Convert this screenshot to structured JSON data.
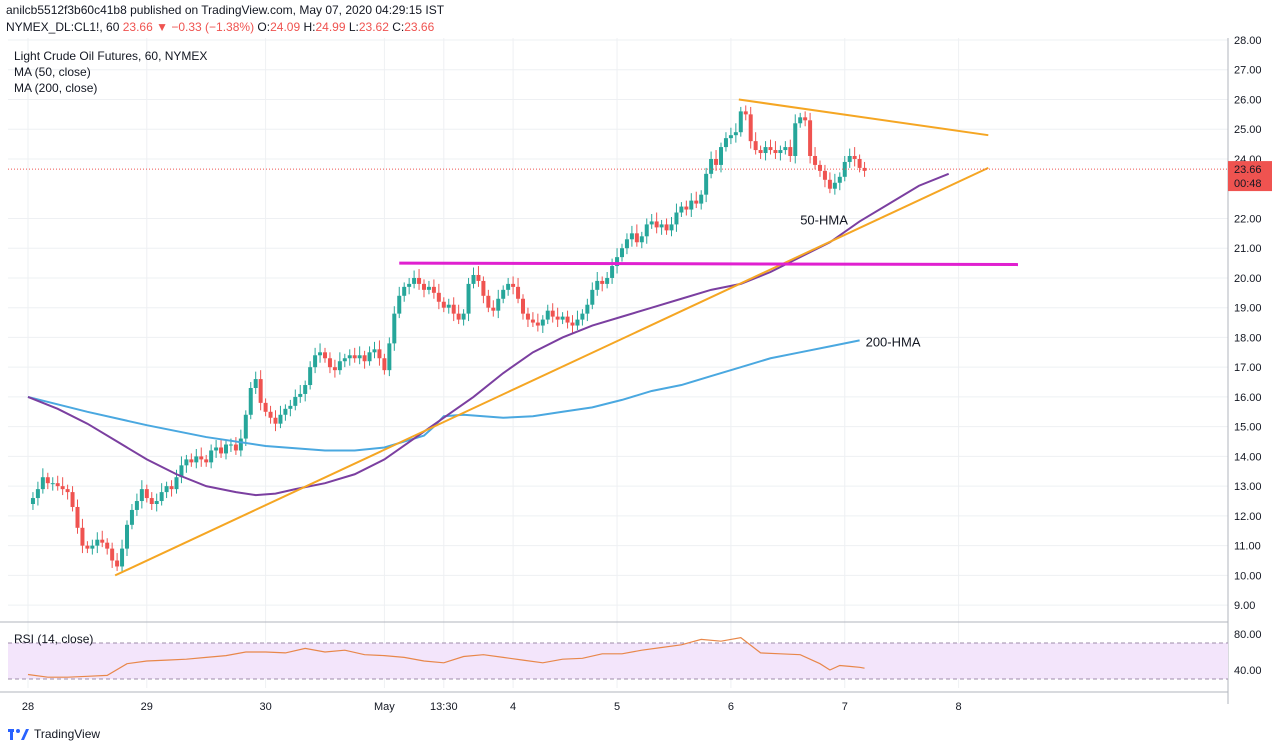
{
  "header": {
    "line1": "anilcb5512f3b60c41b8 published on TradingView.com, May 07, 2020 04:29:15 IST",
    "symbol": "NYMEX_DL:CL1!, 60",
    "last": "23.66",
    "change": "−0.33 (−1.38%)",
    "o_label": "O:",
    "o": "24.09",
    "h_label": "H:",
    "h": "24.99",
    "l_label": "L:",
    "l": "23.62",
    "c_label": "C:",
    "c": "23.66"
  },
  "legend": {
    "title": "Light Crude Oil Futures, 60, NYMEX",
    "ma50": "MA (50, close)",
    "ma200": "MA (200, close)",
    "rsi": "RSI (14, close)"
  },
  "footer": {
    "brand": "TradingView"
  },
  "colors": {
    "up": "#26a69a",
    "down": "#ef5350",
    "hma50": "#7b3fa0",
    "hma200": "#4aa8e0",
    "trend": "#f5a623",
    "resistance": "#e020d0",
    "rsi": "#e8874a",
    "rsi_band": "#f3e5fb"
  },
  "chart_data": {
    "type": "candlestick",
    "title": "Light Crude Oil Futures, 60, NYMEX",
    "ylim": [
      8.5,
      28.0
    ],
    "yticks": [
      "28.00",
      "27.00",
      "26.00",
      "25.00",
      "24.00",
      "22.00",
      "21.00",
      "20.00",
      "19.00",
      "18.00",
      "17.00",
      "16.00",
      "15.00",
      "14.00",
      "13.00",
      "12.00",
      "11.00",
      "10.00",
      "9.00"
    ],
    "x_domain": [
      0,
      1000
    ],
    "xticks": [
      {
        "label": "28",
        "x": 0
      },
      {
        "label": "29",
        "x": 120
      },
      {
        "label": "30",
        "x": 240
      },
      {
        "label": "May",
        "x": 360
      },
      {
        "label": "13:30",
        "x": 420
      },
      {
        "label": "4",
        "x": 490
      },
      {
        "label": "5",
        "x": 595
      },
      {
        "label": "6",
        "x": 710
      },
      {
        "label": "7",
        "x": 825
      },
      {
        "label": "8",
        "x": 940
      }
    ],
    "last_price": {
      "value": 23.66,
      "label": "23.66",
      "countdown": "00:48"
    },
    "series": [
      {
        "name": "price",
        "points": [
          [
            0,
            12.4
          ],
          [
            5,
            12.6
          ],
          [
            10,
            12.9
          ],
          [
            15,
            13.3
          ],
          [
            20,
            13.1
          ],
          [
            25,
            13.1
          ],
          [
            30,
            13.0
          ],
          [
            35,
            12.9
          ],
          [
            40,
            12.8
          ],
          [
            45,
            12.3
          ],
          [
            50,
            11.6
          ],
          [
            55,
            11.0
          ],
          [
            60,
            10.9
          ],
          [
            65,
            11.0
          ],
          [
            70,
            11.2
          ],
          [
            75,
            11.1
          ],
          [
            80,
            10.9
          ],
          [
            85,
            10.5
          ],
          [
            90,
            10.3
          ],
          [
            95,
            10.9
          ],
          [
            100,
            11.7
          ],
          [
            105,
            12.2
          ],
          [
            110,
            12.5
          ],
          [
            115,
            12.9
          ],
          [
            120,
            12.6
          ],
          [
            125,
            12.4
          ],
          [
            130,
            12.5
          ],
          [
            135,
            12.8
          ],
          [
            140,
            13.0
          ],
          [
            145,
            12.9
          ],
          [
            150,
            13.3
          ],
          [
            155,
            13.7
          ],
          [
            160,
            13.9
          ],
          [
            165,
            13.8
          ],
          [
            170,
            14.0
          ],
          [
            175,
            13.9
          ],
          [
            180,
            13.8
          ],
          [
            185,
            14.2
          ],
          [
            190,
            14.3
          ],
          [
            195,
            14.1
          ],
          [
            200,
            14.4
          ],
          [
            205,
            14.4
          ],
          [
            210,
            14.2
          ],
          [
            215,
            14.6
          ],
          [
            220,
            15.4
          ],
          [
            225,
            16.3
          ],
          [
            230,
            16.6
          ],
          [
            235,
            15.8
          ],
          [
            240,
            15.5
          ],
          [
            245,
            15.3
          ],
          [
            250,
            15.1
          ],
          [
            255,
            15.4
          ],
          [
            260,
            15.6
          ],
          [
            265,
            15.7
          ],
          [
            270,
            16.0
          ],
          [
            275,
            16.1
          ],
          [
            280,
            16.4
          ],
          [
            285,
            17.0
          ],
          [
            290,
            17.4
          ],
          [
            295,
            17.5
          ],
          [
            300,
            17.3
          ],
          [
            305,
            17.0
          ],
          [
            310,
            16.9
          ],
          [
            315,
            17.2
          ],
          [
            320,
            17.3
          ],
          [
            325,
            17.4
          ],
          [
            330,
            17.3
          ],
          [
            335,
            17.4
          ],
          [
            340,
            17.2
          ],
          [
            345,
            17.5
          ],
          [
            350,
            17.6
          ],
          [
            355,
            17.3
          ],
          [
            360,
            16.9
          ],
          [
            365,
            17.8
          ],
          [
            370,
            18.8
          ],
          [
            375,
            19.4
          ],
          [
            380,
            19.7
          ],
          [
            385,
            19.8
          ],
          [
            390,
            20.0
          ],
          [
            395,
            19.8
          ],
          [
            400,
            19.6
          ],
          [
            405,
            19.7
          ],
          [
            410,
            19.5
          ],
          [
            415,
            19.2
          ],
          [
            420,
            19.0
          ],
          [
            425,
            19.1
          ],
          [
            430,
            18.8
          ],
          [
            435,
            18.6
          ],
          [
            440,
            18.8
          ],
          [
            445,
            19.8
          ],
          [
            450,
            20.1
          ],
          [
            455,
            19.9
          ],
          [
            460,
            19.4
          ],
          [
            465,
            19.0
          ],
          [
            470,
            18.9
          ],
          [
            475,
            19.3
          ],
          [
            480,
            19.6
          ],
          [
            485,
            19.8
          ],
          [
            490,
            19.7
          ],
          [
            495,
            19.3
          ],
          [
            500,
            18.8
          ],
          [
            505,
            18.6
          ],
          [
            510,
            18.5
          ],
          [
            515,
            18.4
          ],
          [
            520,
            18.6
          ],
          [
            525,
            18.9
          ],
          [
            530,
            18.7
          ],
          [
            535,
            18.6
          ],
          [
            540,
            18.7
          ],
          [
            545,
            18.5
          ],
          [
            550,
            18.4
          ],
          [
            555,
            18.6
          ],
          [
            560,
            18.8
          ],
          [
            565,
            19.1
          ],
          [
            570,
            19.6
          ],
          [
            575,
            19.9
          ],
          [
            580,
            19.8
          ],
          [
            585,
            20.0
          ],
          [
            590,
            20.4
          ],
          [
            595,
            20.7
          ],
          [
            600,
            21.0
          ],
          [
            605,
            21.3
          ],
          [
            610,
            21.5
          ],
          [
            615,
            21.2
          ],
          [
            620,
            21.4
          ],
          [
            625,
            21.8
          ],
          [
            630,
            21.9
          ],
          [
            635,
            21.7
          ],
          [
            640,
            21.8
          ],
          [
            645,
            21.6
          ],
          [
            650,
            21.8
          ],
          [
            655,
            22.2
          ],
          [
            660,
            22.4
          ],
          [
            665,
            22.3
          ],
          [
            670,
            22.6
          ],
          [
            675,
            22.5
          ],
          [
            680,
            22.8
          ],
          [
            685,
            23.5
          ],
          [
            690,
            24.0
          ],
          [
            695,
            23.8
          ],
          [
            700,
            24.4
          ],
          [
            705,
            24.7
          ],
          [
            710,
            24.8
          ],
          [
            715,
            24.9
          ],
          [
            720,
            25.6
          ],
          [
            725,
            25.5
          ],
          [
            730,
            24.6
          ],
          [
            735,
            24.3
          ],
          [
            740,
            24.2
          ],
          [
            745,
            24.4
          ],
          [
            750,
            24.3
          ],
          [
            755,
            24.2
          ],
          [
            760,
            24.3
          ],
          [
            765,
            24.4
          ],
          [
            770,
            24.1
          ],
          [
            775,
            25.2
          ],
          [
            780,
            25.4
          ],
          [
            785,
            25.3
          ],
          [
            790,
            24.1
          ],
          [
            795,
            23.8
          ],
          [
            800,
            23.6
          ],
          [
            805,
            23.3
          ],
          [
            810,
            23.0
          ],
          [
            815,
            23.2
          ],
          [
            820,
            23.4
          ],
          [
            825,
            23.9
          ],
          [
            830,
            24.1
          ],
          [
            835,
            24.0
          ],
          [
            840,
            23.7
          ],
          [
            845,
            23.6
          ]
        ]
      },
      {
        "name": "50-HMA",
        "label": "50-HMA",
        "points": [
          [
            0,
            16.0
          ],
          [
            30,
            15.6
          ],
          [
            60,
            15.1
          ],
          [
            90,
            14.5
          ],
          [
            120,
            13.9
          ],
          [
            150,
            13.4
          ],
          [
            180,
            13.0
          ],
          [
            210,
            12.8
          ],
          [
            230,
            12.7
          ],
          [
            250,
            12.75
          ],
          [
            270,
            12.9
          ],
          [
            300,
            13.1
          ],
          [
            330,
            13.4
          ],
          [
            360,
            13.9
          ],
          [
            390,
            14.6
          ],
          [
            420,
            15.3
          ],
          [
            450,
            16.0
          ],
          [
            480,
            16.8
          ],
          [
            510,
            17.5
          ],
          [
            540,
            18.0
          ],
          [
            570,
            18.4
          ],
          [
            600,
            18.7
          ],
          [
            630,
            19.0
          ],
          [
            660,
            19.3
          ],
          [
            690,
            19.6
          ],
          [
            720,
            19.8
          ],
          [
            750,
            20.2
          ],
          [
            780,
            20.7
          ],
          [
            810,
            21.2
          ],
          [
            840,
            21.9
          ],
          [
            870,
            22.5
          ],
          [
            900,
            23.1
          ],
          [
            930,
            23.5
          ]
        ]
      },
      {
        "name": "200-HMA",
        "label": "200-HMA",
        "points": [
          [
            0,
            16.0
          ],
          [
            60,
            15.5
          ],
          [
            120,
            15.05
          ],
          [
            180,
            14.65
          ],
          [
            240,
            14.35
          ],
          [
            300,
            14.2
          ],
          [
            330,
            14.2
          ],
          [
            360,
            14.3
          ],
          [
            380,
            14.5
          ],
          [
            400,
            14.7
          ],
          [
            410,
            15.0
          ],
          [
            420,
            15.35
          ],
          [
            440,
            15.4
          ],
          [
            460,
            15.35
          ],
          [
            480,
            15.3
          ],
          [
            510,
            15.35
          ],
          [
            540,
            15.5
          ],
          [
            570,
            15.65
          ],
          [
            600,
            15.9
          ],
          [
            630,
            16.2
          ],
          [
            660,
            16.4
          ],
          [
            690,
            16.7
          ],
          [
            720,
            17.0
          ],
          [
            750,
            17.3
          ],
          [
            780,
            17.5
          ],
          [
            810,
            17.7
          ],
          [
            840,
            17.9
          ]
        ]
      }
    ],
    "trendlines": [
      {
        "name": "rising-support",
        "from": [
          88,
          10.0
        ],
        "to": [
          970,
          23.7
        ]
      },
      {
        "name": "falling-resistance",
        "from": [
          718,
          26.0
        ],
        "to": [
          970,
          24.8
        ]
      },
      {
        "name": "horizontal-resistance",
        "from": [
          375,
          20.5
        ],
        "to": [
          1000,
          20.45
        ]
      }
    ],
    "rsi": {
      "title": "RSI (14, close)",
      "ylim": [
        20,
        90
      ],
      "yticks": [
        "80.00",
        "40.00"
      ],
      "band": [
        30,
        70
      ],
      "points": [
        [
          0,
          35
        ],
        [
          20,
          32
        ],
        [
          40,
          32
        ],
        [
          60,
          33
        ],
        [
          80,
          34
        ],
        [
          100,
          47
        ],
        [
          120,
          50
        ],
        [
          140,
          51
        ],
        [
          160,
          52
        ],
        [
          180,
          54
        ],
        [
          200,
          56
        ],
        [
          220,
          60
        ],
        [
          240,
          60
        ],
        [
          260,
          59
        ],
        [
          280,
          64
        ],
        [
          300,
          60
        ],
        [
          320,
          62
        ],
        [
          340,
          57
        ],
        [
          360,
          56
        ],
        [
          380,
          54
        ],
        [
          400,
          50
        ],
        [
          420,
          48
        ],
        [
          440,
          55
        ],
        [
          460,
          57
        ],
        [
          480,
          54
        ],
        [
          500,
          51
        ],
        [
          520,
          48
        ],
        [
          540,
          52
        ],
        [
          560,
          53
        ],
        [
          580,
          58
        ],
        [
          600,
          58
        ],
        [
          620,
          62
        ],
        [
          640,
          65
        ],
        [
          660,
          68
        ],
        [
          680,
          74
        ],
        [
          700,
          72
        ],
        [
          720,
          76
        ],
        [
          740,
          59
        ],
        [
          760,
          58
        ],
        [
          780,
          57
        ],
        [
          800,
          47
        ],
        [
          810,
          40
        ],
        [
          820,
          45
        ],
        [
          830,
          44
        ],
        [
          840,
          43
        ],
        [
          845,
          42
        ]
      ]
    }
  }
}
